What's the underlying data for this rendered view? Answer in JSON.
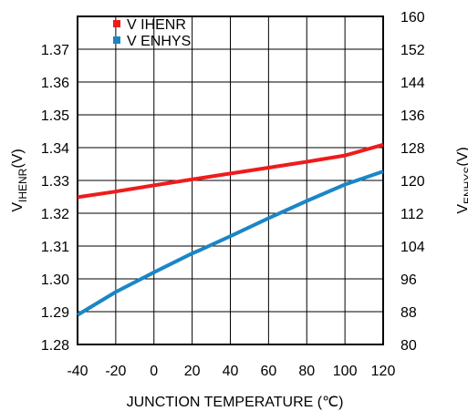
{
  "chart_data": {
    "type": "line",
    "xlabel": "JUNCTION TEMPERATURE (℃)",
    "ylabel_left": {
      "main": "V",
      "sub": "IHENR",
      "unit": "(V)"
    },
    "ylabel_right": {
      "main": "V",
      "sub": "ENHYS",
      "unit": "(V)"
    },
    "xlim": [
      -40,
      120
    ],
    "ylim_left": [
      1.28,
      1.38
    ],
    "ylim_right": [
      80,
      160
    ],
    "x_ticks": [
      "-40",
      "-20",
      "0",
      "20",
      "40",
      "60",
      "80",
      "100",
      "120"
    ],
    "y_left_ticks": [
      "1.28",
      "1.29",
      "1.30",
      "1.31",
      "1.32",
      "1.33",
      "1.34",
      "1.35",
      "1.36",
      "1.37"
    ],
    "y_right_ticks": [
      "80",
      "88",
      "96",
      "104",
      "112",
      "120",
      "128",
      "136",
      "144",
      "152",
      "160"
    ],
    "grid": true,
    "legend_position": "top-left",
    "series": [
      {
        "name": "V IHENR",
        "axis": "left",
        "color": "#ee1c1c",
        "x": [
          -40,
          -20,
          0,
          20,
          40,
          60,
          80,
          100,
          120
        ],
        "y": [
          1.3249,
          1.3266,
          1.3285,
          1.3303,
          1.3321,
          1.3339,
          1.3357,
          1.3376,
          1.3409
        ]
      },
      {
        "name": "V ENHYS",
        "axis": "right",
        "color": "#1a86c6",
        "x": [
          -40,
          -20,
          0,
          20,
          25,
          40,
          60,
          80,
          100,
          120
        ],
        "y": [
          87.2,
          92.8,
          97.6,
          102.2,
          103.2,
          106.4,
          110.8,
          115.0,
          119.0,
          122.2
        ]
      }
    ]
  }
}
